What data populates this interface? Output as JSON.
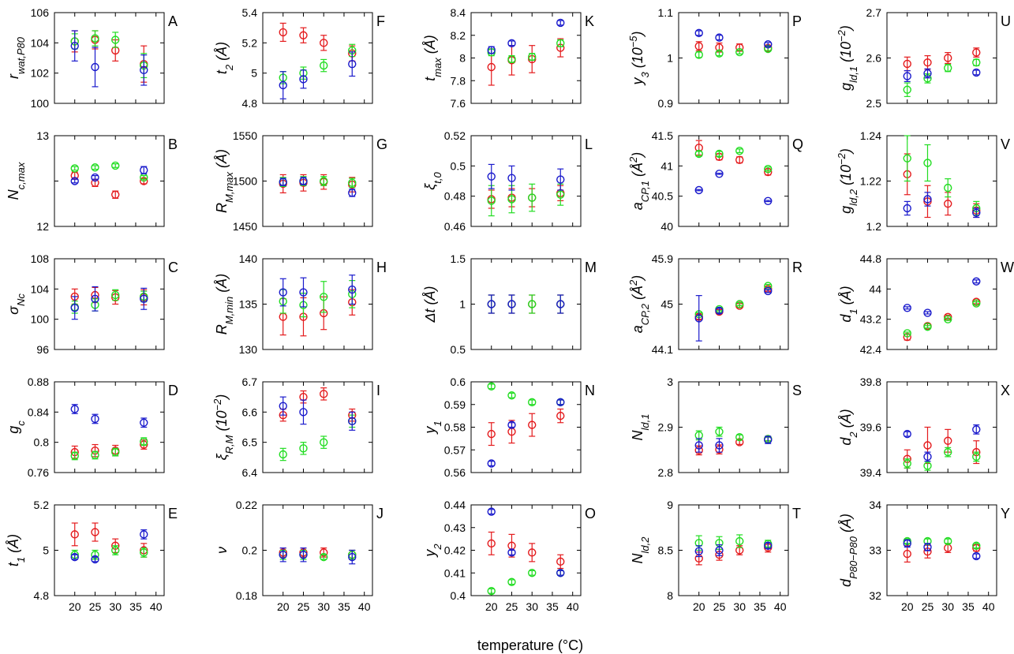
{
  "figure": {
    "xlabel": "temperature (°C)",
    "x_tick_labels": [
      "20",
      "25",
      "30",
      "35",
      "40"
    ]
  },
  "chart_data": [
    {
      "label": "A",
      "ylabel": "r<tspan baseline-shift='sub' font-size='13'>wat,P80</tspan>",
      "ylim": [
        100,
        106
      ],
      "yticks": [
        "100",
        "102",
        "104",
        "106"
      ],
      "red": [
        104.1,
        104.2,
        103.5,
        102.6
      ],
      "green": [
        104.1,
        104.3,
        104.2,
        102.5
      ],
      "blue": [
        103.8,
        102.4,
        null,
        102.2
      ],
      "red_err": [
        0.7,
        0.6,
        0.7,
        1.2
      ],
      "green_err": [
        0.5,
        0.5,
        0.5,
        0.8
      ],
      "blue_err": [
        1.0,
        1.3,
        null,
        1.0
      ],
      "type": "scatter"
    },
    {
      "label": "B",
      "ylabel": "N<tspan baseline-shift='sub' font-size='13'>c,max</tspan>",
      "ylim": [
        12,
        13
      ],
      "yticks": [
        "12",
        "",
        "13"
      ],
      "red": [
        12.56,
        12.48,
        12.35,
        12.5
      ],
      "green": [
        12.64,
        12.65,
        12.67,
        12.54
      ],
      "blue": [
        12.5,
        12.54,
        null,
        12.62
      ],
      "red_err": [
        0.04,
        0.04,
        0.04,
        0.03
      ],
      "green_err": [
        0.02,
        0.02,
        0.02,
        0.02
      ],
      "blue_err": [
        0.02,
        0.02,
        null,
        0.04
      ],
      "type": "scatter"
    },
    {
      "label": "C",
      "ylabel": "σ<tspan baseline-shift='sub' font-size='13'>N<tspan font-style='italic'>c</tspan></tspan>",
      "ylim": [
        96,
        108
      ],
      "yticks": [
        "96",
        "100",
        "104",
        "108"
      ],
      "red": [
        103,
        103.2,
        102.9,
        102.9
      ],
      "green": [
        101.6,
        101.9,
        103.2,
        103
      ],
      "blue": [
        101.5,
        102.7,
        null,
        102.7
      ],
      "red_err": [
        1.0,
        1.0,
        0.9,
        1.0
      ],
      "green_err": [
        0.8,
        0.8,
        0.7,
        0.7
      ],
      "blue_err": [
        1.5,
        1.6,
        null,
        1.4
      ],
      "type": "scatter"
    },
    {
      "label": "D",
      "ylabel": "g<tspan baseline-shift='sub' font-size='13'>c</tspan>",
      "ylim": [
        0.76,
        0.88
      ],
      "yticks": [
        "0.76",
        "0.8",
        "0.84",
        "0.88"
      ],
      "red": [
        0.787,
        0.789,
        0.789,
        0.797
      ],
      "green": [
        0.782,
        0.783,
        0.787,
        0.801
      ],
      "blue": [
        0.844,
        0.831,
        null,
        0.826
      ],
      "red_err": [
        0.008,
        0.008,
        0.007,
        0.006
      ],
      "green_err": [
        0.005,
        0.005,
        0.005,
        0.005
      ],
      "blue_err": [
        0.006,
        0.006,
        null,
        0.006
      ],
      "type": "scatter"
    },
    {
      "label": "E",
      "ylabel": "t<tspan baseline-shift='sub' font-size='13'>1</tspan> (Å)",
      "ylim": [
        4.8,
        5.2
      ],
      "yticks": [
        "4.8",
        "5",
        "5.2"
      ],
      "red": [
        5.07,
        5.08,
        5.02,
        5.0
      ],
      "green": [
        4.98,
        4.98,
        5.0,
        4.99
      ],
      "blue": [
        4.97,
        4.96,
        null,
        5.07
      ],
      "red_err": [
        0.05,
        0.04,
        0.03,
        0.03
      ],
      "green_err": [
        0.02,
        0.02,
        0.02,
        0.02
      ],
      "blue_err": [
        0.01,
        0.01,
        null,
        0.02
      ],
      "type": "scatter"
    },
    {
      "label": "F",
      "ylabel": "t<tspan baseline-shift='sub' font-size='13'>2</tspan> (Å)",
      "ylim": [
        4.8,
        5.4
      ],
      "yticks": [
        "4.8",
        "5",
        "5.2",
        "5.4"
      ],
      "red": [
        5.27,
        5.25,
        5.2,
        5.13
      ],
      "green": [
        4.97,
        5.0,
        5.05,
        5.15
      ],
      "blue": [
        4.92,
        4.96,
        null,
        5.06
      ],
      "red_err": [
        0.06,
        0.05,
        0.05,
        0.05
      ],
      "green_err": [
        0.04,
        0.04,
        0.04,
        0.04
      ],
      "blue_err": [
        0.09,
        0.06,
        null,
        0.08
      ],
      "type": "scatter"
    },
    {
      "label": "G",
      "ylabel": "R<tspan baseline-shift='sub' font-size='13'>M,max</tspan> (Å)",
      "ylim": [
        1450,
        1550
      ],
      "yticks": [
        "1450",
        "1500",
        "1550"
      ],
      "red": [
        1497,
        1498,
        1499,
        1496
      ],
      "green": [
        1499,
        1500,
        1500,
        1498
      ],
      "blue": [
        1499,
        1500,
        null,
        1487
      ],
      "red_err": [
        10,
        9,
        8,
        8
      ],
      "green_err": [
        5,
        5,
        5,
        5
      ],
      "blue_err": [
        4,
        4,
        null,
        4
      ],
      "type": "scatter"
    },
    {
      "label": "H",
      "ylabel": "R<tspan baseline-shift='sub' font-size='13'>M,min</tspan> (Å)",
      "ylim": [
        130,
        140
      ],
      "yticks": [
        "130",
        "135",
        "140"
      ],
      "red": [
        133.6,
        133.6,
        134,
        135.2
      ],
      "green": [
        135.3,
        134.9,
        135.8,
        136.1
      ],
      "blue": [
        136.3,
        136.3,
        null,
        136.6
      ],
      "red_err": [
        2.0,
        2.1,
        1.8,
        1.4
      ],
      "green_err": [
        1.3,
        1.3,
        1.7,
        1.5
      ],
      "blue_err": [
        1.5,
        1.6,
        null,
        1.6
      ],
      "type": "scatter"
    },
    {
      "label": "I",
      "ylabel": "ξ<tspan baseline-shift='sub' font-size='13'>R,M</tspan> (10<tspan baseline-shift='super' font-size='13'>−2</tspan>)",
      "ylim": [
        6.4,
        6.7
      ],
      "yticks": [
        "6.4",
        "6.5",
        "6.6",
        "6.7"
      ],
      "red": [
        6.59,
        6.65,
        6.66,
        6.59
      ],
      "green": [
        6.46,
        6.48,
        6.5,
        6.57
      ],
      "blue": [
        6.62,
        6.6,
        null,
        6.57
      ],
      "red_err": [
        0.02,
        0.02,
        0.02,
        0.02
      ],
      "green_err": [
        0.02,
        0.02,
        0.02,
        0.02
      ],
      "blue_err": [
        0.03,
        0.04,
        null,
        0.03
      ],
      "type": "scatter"
    },
    {
      "label": "J",
      "ylabel": "ν",
      "ylim": [
        0.18,
        0.22
      ],
      "yticks": [
        "0.18",
        "0.2",
        "0.22"
      ],
      "red": [
        0.199,
        0.199,
        0.199,
        0.198
      ],
      "green": [
        0.198,
        0.198,
        0.197,
        0.198
      ],
      "blue": [
        0.198,
        0.198,
        null,
        0.197
      ],
      "red_err": [
        0.002,
        0.002,
        0.002,
        0.002
      ],
      "green_err": [
        0.002,
        0.002,
        0.001,
        0.002
      ],
      "blue_err": [
        0.003,
        0.003,
        null,
        0.003
      ],
      "type": "scatter"
    },
    {
      "label": "K",
      "ylabel": "t<tspan baseline-shift='sub' font-size='13'>max</tspan> (Å)",
      "ylim": [
        7.6,
        8.4
      ],
      "yticks": [
        "7.6",
        "7.8",
        "8",
        "8.2",
        "8.4"
      ],
      "red": [
        7.92,
        7.98,
        7.99,
        8.09
      ],
      "green": [
        8.05,
        7.99,
        8.01,
        8.13
      ],
      "blue": [
        8.07,
        8.13,
        null,
        8.31
      ],
      "red_err": [
        0.16,
        0.13,
        0.12,
        0.08
      ],
      "green_err": [
        0.03,
        0.03,
        0.03,
        0.03
      ],
      "blue_err": [
        0.03,
        0.02,
        null,
        0.02
      ],
      "type": "scatter"
    },
    {
      "label": "L",
      "ylabel": "ξ<tspan baseline-shift='sub' font-size='13'>t,0</tspan>",
      "ylim": [
        0.46,
        0.52
      ],
      "yticks": [
        "0.46",
        "0.48",
        "0.5",
        "0.52"
      ],
      "red": [
        0.478,
        0.479,
        0.479,
        0.482
      ],
      "green": [
        0.477,
        0.478,
        0.479,
        0.481
      ],
      "blue": [
        0.493,
        0.492,
        null,
        0.491
      ],
      "red_err": [
        0.006,
        0.006,
        0.006,
        0.005
      ],
      "green_err": [
        0.01,
        0.009,
        0.009,
        0.007
      ],
      "blue_err": [
        0.008,
        0.008,
        null,
        0.007
      ],
      "type": "scatter"
    },
    {
      "label": "M",
      "ylabel": "Δt (Å)",
      "ylim": [
        0.5,
        1.5
      ],
      "yticks": [
        "0.5",
        "1",
        "1.5"
      ],
      "red": [
        1.0,
        1.0,
        1.0,
        1.0
      ],
      "green": [
        1.0,
        1.0,
        1.0,
        1.0
      ],
      "blue": [
        1.0,
        1.0,
        null,
        1.0
      ],
      "red_err": [
        0.1,
        0.1,
        0.1,
        0.1
      ],
      "green_err": [
        0.1,
        0.1,
        0.1,
        0.1
      ],
      "blue_err": [
        0.1,
        0.1,
        null,
        0.1
      ],
      "type": "scatter"
    },
    {
      "label": "N",
      "ylabel": "y<tspan baseline-shift='sub' font-size='13'>1</tspan>",
      "ylim": [
        0.56,
        0.6
      ],
      "yticks": [
        "0.56",
        "0.57",
        "0.58",
        "0.59",
        "0.6"
      ],
      "red": [
        0.577,
        0.578,
        0.581,
        0.585
      ],
      "green": [
        0.598,
        0.594,
        0.591,
        0.591
      ],
      "blue": [
        0.564,
        0.581,
        null,
        0.591
      ],
      "red_err": [
        0.005,
        0.005,
        0.005,
        0.003
      ],
      "green_err": [
        0.001,
        0.001,
        0.001,
        0.001
      ],
      "blue_err": [
        0.001,
        0.001,
        null,
        0.001
      ],
      "type": "scatter"
    },
    {
      "label": "O",
      "ylabel": "y<tspan baseline-shift='sub' font-size='13'>2</tspan>",
      "ylim": [
        0.4,
        0.44
      ],
      "yticks": [
        "0.4",
        "0.41",
        "0.42",
        "0.43",
        "0.44"
      ],
      "red": [
        0.423,
        0.422,
        0.419,
        0.415
      ],
      "green": [
        0.402,
        0.406,
        0.41,
        0.41
      ],
      "blue": [
        0.437,
        0.419,
        null,
        0.41
      ],
      "red_err": [
        0.005,
        0.005,
        0.004,
        0.003
      ],
      "green_err": [
        0.001,
        0.001,
        0.001,
        0.001
      ],
      "blue_err": [
        0.001,
        0.001,
        null,
        0.001
      ],
      "type": "scatter"
    },
    {
      "label": "P",
      "ylabel": "y<tspan baseline-shift='sub' font-size='13'>3</tspan> (10<tspan baseline-shift='super' font-size='13'>−5</tspan>)",
      "ylim": [
        0.9,
        1.1
      ],
      "yticks": [
        "0.9",
        "1",
        "1.1"
      ],
      "red": [
        1.026,
        1.023,
        1.023,
        1.022
      ],
      "green": [
        1.007,
        1.01,
        1.013,
        1.02
      ],
      "blue": [
        1.055,
        1.045,
        null,
        1.03
      ],
      "red_err": [
        0.01,
        0.01,
        0.008,
        0.006
      ],
      "green_err": [
        0.006,
        0.005,
        0.004,
        0.004
      ],
      "blue_err": [
        0.005,
        0.005,
        null,
        0.004
      ],
      "type": "scatter"
    },
    {
      "label": "Q",
      "ylabel": "a<tspan baseline-shift='sub' font-size='13'>CP,1</tspan> (Å<tspan baseline-shift='super' font-size='13'>2</tspan>)",
      "ylim": [
        40,
        41.5
      ],
      "yticks": [
        "40",
        "40.5",
        "41",
        "41.5"
      ],
      "red": [
        41.3,
        41.15,
        41.1,
        40.9
      ],
      "green": [
        41.2,
        41.2,
        41.25,
        40.95
      ],
      "blue": [
        40.6,
        40.87,
        null,
        40.42
      ],
      "red_err": [
        0.12,
        0.05,
        0.05,
        0.05
      ],
      "green_err": [
        0.04,
        0.04,
        0.03,
        0.03
      ],
      "blue_err": [
        0.01,
        0.01,
        null,
        0.01
      ],
      "type": "scatter"
    },
    {
      "label": "R",
      "ylabel": "a<tspan baseline-shift='sub' font-size='13'>CP,2</tspan> (Å<tspan baseline-shift='super' font-size='13'>2</tspan>)",
      "ylim": [
        44.1,
        45.9
      ],
      "yticks": [
        "44.1",
        "45",
        "45.9"
      ],
      "red": [
        44.75,
        44.85,
        44.97,
        45.3
      ],
      "green": [
        44.8,
        44.9,
        45.0,
        45.36
      ],
      "blue": [
        44.72,
        44.87,
        null,
        45.26
      ],
      "red_err": [
        0.05,
        0.04,
        0.04,
        0.04
      ],
      "green_err": [
        0.03,
        0.03,
        0.03,
        0.03
      ],
      "blue_err": [
        0.45,
        0.05,
        null,
        0.03
      ],
      "type": "scatter"
    },
    {
      "label": "S",
      "ylabel": "N<tspan baseline-shift='sub' font-size='13'>ld,1</tspan>",
      "ylim": [
        2.8,
        3.0
      ],
      "yticks": [
        "2.8",
        "2.9",
        "3"
      ],
      "red": [
        2.849,
        2.851,
        2.867,
        2.874
      ],
      "green": [
        2.882,
        2.89,
        2.878,
        2.874
      ],
      "blue": [
        2.86,
        2.86,
        null,
        2.872
      ],
      "red_err": [
        0.01,
        0.01,
        0.005,
        0.004
      ],
      "green_err": [
        0.01,
        0.01,
        0.005,
        0.004
      ],
      "blue_err": [
        0.015,
        0.015,
        null,
        0.008
      ],
      "type": "scatter"
    },
    {
      "label": "T",
      "ylabel": "N<tspan baseline-shift='sub' font-size='13'>ld,2</tspan>",
      "ylim": [
        8,
        9
      ],
      "yticks": [
        "8",
        "8.5",
        "9"
      ],
      "red": [
        8.41,
        8.45,
        8.5,
        8.53
      ],
      "green": [
        8.58,
        8.58,
        8.6,
        8.57
      ],
      "blue": [
        8.49,
        8.5,
        null,
        8.55
      ],
      "red_err": [
        0.07,
        0.06,
        0.05,
        0.05
      ],
      "green_err": [
        0.08,
        0.07,
        0.07,
        0.04
      ],
      "blue_err": [
        0.06,
        0.06,
        null,
        0.03
      ],
      "type": "scatter"
    },
    {
      "label": "U",
      "ylabel": "g<tspan baseline-shift='sub' font-size='13'>ld,1</tspan> (10<tspan baseline-shift='super' font-size='13'>−2</tspan>)",
      "ylim": [
        2.5,
        2.7
      ],
      "yticks": [
        "2.5",
        "2.6",
        "2.7"
      ],
      "red": [
        2.587,
        2.59,
        2.6,
        2.612
      ],
      "green": [
        2.53,
        2.555,
        2.578,
        2.59
      ],
      "blue": [
        2.56,
        2.566,
        null,
        2.568
      ],
      "red_err": [
        0.015,
        0.015,
        0.012,
        0.01
      ],
      "green_err": [
        0.015,
        0.01,
        0.008,
        0.007
      ],
      "blue_err": [
        0.012,
        0.01,
        null,
        0.005
      ],
      "type": "scatter"
    },
    {
      "label": "V",
      "ylabel": "g<tspan baseline-shift='sub' font-size='13'>ld,2</tspan> (10<tspan baseline-shift='super' font-size='13'>−2</tspan>)",
      "ylim": [
        1.2,
        1.24
      ],
      "yticks": [
        "1.2",
        "1.22",
        "1.24"
      ],
      "red": [
        1.223,
        1.211,
        1.21,
        1.207
      ],
      "green": [
        1.23,
        1.228,
        1.217,
        1.208
      ],
      "blue": [
        1.208,
        1.212,
        null,
        1.206
      ],
      "red_err": [
        0.009,
        0.007,
        0.005,
        0.003
      ],
      "green_err": [
        0.01,
        0.008,
        0.004,
        0.003
      ],
      "blue_err": [
        0.003,
        0.003,
        null,
        0.002
      ],
      "type": "scatter"
    },
    {
      "label": "W",
      "ylabel": "d<tspan baseline-shift='sub' font-size='13'>1</tspan> (Å)",
      "ylim": [
        42.4,
        44.8
      ],
      "yticks": [
        "42.4",
        "43.2",
        "44",
        "44.8"
      ],
      "red": [
        42.73,
        43.02,
        43.26,
        43.66
      ],
      "green": [
        42.83,
        43.0,
        43.2,
        43.62
      ],
      "blue": [
        43.5,
        43.37,
        null,
        44.2
      ],
      "red_err": [
        0.08,
        0.06,
        0.05,
        0.05
      ],
      "green_err": [
        0.03,
        0.03,
        0.03,
        0.04
      ],
      "blue_err": [
        0.03,
        0.03,
        null,
        0.04
      ],
      "type": "scatter"
    },
    {
      "label": "X",
      "ylabel": "d<tspan baseline-shift='sub' font-size='13'>2</tspan> (Å)",
      "ylim": [
        39.4,
        39.8
      ],
      "yticks": [
        "39.4",
        "39.6",
        "39.8"
      ],
      "red": [
        39.46,
        39.52,
        39.54,
        39.49
      ],
      "green": [
        39.44,
        39.43,
        39.49,
        39.47
      ],
      "blue": [
        39.57,
        39.47,
        null,
        39.59
      ],
      "red_err": [
        0.04,
        0.08,
        0.05,
        0.05
      ],
      "green_err": [
        0.02,
        0.02,
        0.02,
        0.02
      ],
      "blue_err": [
        0.01,
        0.02,
        null,
        0.02
      ],
      "type": "scatter"
    },
    {
      "label": "Y",
      "ylabel": "d<tspan baseline-shift='sub' font-size='13'>P80−P80</tspan> (Å)",
      "ylim": [
        32,
        34
      ],
      "yticks": [
        "32",
        "33",
        "34"
      ],
      "red": [
        32.92,
        32.97,
        33.05,
        33.05
      ],
      "green": [
        33.2,
        33.2,
        33.2,
        33.1
      ],
      "blue": [
        33.15,
        33.07,
        null,
        32.87
      ],
      "red_err": [
        0.18,
        0.14,
        0.1,
        0.07
      ],
      "green_err": [
        0.05,
        0.05,
        0.05,
        0.05
      ],
      "blue_err": [
        0.08,
        0.08,
        null,
        0.05
      ],
      "type": "scatter"
    }
  ],
  "series_colors": {
    "red": "#e41a1c",
    "green": "#22dd22",
    "blue": "#1a1acc"
  }
}
